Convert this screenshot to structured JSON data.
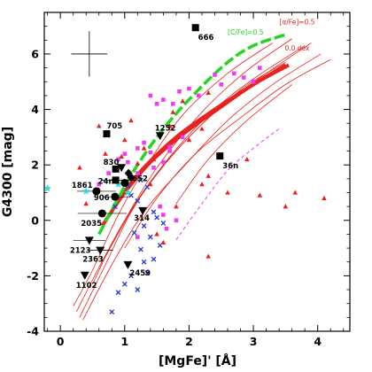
{
  "chart_data": {
    "type": "scatter",
    "xlabel": "[MgFe]' [Å]",
    "ylabel": "G4300 [mag]",
    "xlim": [
      -0.25,
      4.5
    ],
    "ylim": [
      -4,
      7.5
    ],
    "xticks": [
      0,
      1,
      2,
      3,
      4
    ],
    "yticks": [
      -4,
      -2,
      0,
      2,
      4,
      6
    ],
    "grid": false,
    "colors": {
      "red": "#e8231f",
      "green": "#1fd81f",
      "magenta": "#f23bf2",
      "blue": "#2a3fd0",
      "cyan": "#22dddd",
      "black": "#000000"
    },
    "model_labels": [
      {
        "text": "[C/Fe]=0.5",
        "color": "#1fd81f",
        "x": 2.88,
        "y": 6.7
      },
      {
        "text": "[α/Fe]=0.5",
        "color": "#e8231f",
        "x": 3.68,
        "y": 7.07
      },
      {
        "text": "0.0 dex",
        "color": "#e8231f",
        "x": 3.68,
        "y": 6.13
      }
    ],
    "error_bar": {
      "x": 0.45,
      "y": 6.0,
      "xerr": 0.28,
      "yerr": 0.82
    },
    "model_grid": [
      [
        [
          0.25,
          -3.3
        ],
        [
          0.6,
          -1.7
        ],
        [
          1.0,
          0.0
        ],
        [
          1.5,
          1.9
        ],
        [
          2.2,
          3.9
        ],
        [
          2.9,
          5.4
        ],
        [
          3.6,
          6.55
        ]
      ],
      [
        [
          0.3,
          -3.5
        ],
        [
          0.7,
          -1.6
        ],
        [
          1.1,
          0.3
        ],
        [
          1.6,
          2.0
        ],
        [
          2.3,
          3.8
        ],
        [
          3.0,
          5.1
        ],
        [
          3.8,
          6.3
        ]
      ],
      [
        [
          0.35,
          -3.6
        ],
        [
          0.8,
          -1.6
        ],
        [
          1.3,
          0.3
        ],
        [
          1.9,
          1.9
        ],
        [
          2.6,
          3.6
        ],
        [
          3.3,
          4.9
        ],
        [
          4.05,
          6.0
        ]
      ],
      [
        [
          0.2,
          -3.1
        ],
        [
          0.5,
          -1.8
        ],
        [
          0.9,
          0.2
        ],
        [
          1.35,
          2.0
        ],
        [
          1.9,
          3.8
        ],
        [
          2.6,
          5.3
        ],
        [
          3.3,
          6.4
        ]
      ],
      [
        [
          0.5,
          -2.3
        ],
        [
          0.9,
          -0.4
        ],
        [
          1.4,
          1.4
        ],
        [
          2.0,
          3.0
        ],
        [
          2.8,
          4.7
        ],
        [
          3.5,
          5.7
        ]
      ],
      [
        [
          0.7,
          -1.3
        ],
        [
          1.2,
          0.7
        ],
        [
          1.8,
          2.5
        ],
        [
          2.5,
          4.1
        ],
        [
          3.2,
          5.3
        ],
        [
          3.9,
          6.4
        ]
      ],
      [
        [
          1.0,
          -1.0
        ],
        [
          1.5,
          0.8
        ],
        [
          2.1,
          2.4
        ],
        [
          2.8,
          3.7
        ],
        [
          3.5,
          4.9
        ],
        [
          4.2,
          5.8
        ]
      ],
      [
        [
          1.8,
          0.6
        ],
        [
          2.3,
          2.2
        ],
        [
          2.9,
          3.6
        ],
        [
          3.6,
          4.9
        ]
      ]
    ],
    "model_thick": [
      [
        [
          0.65,
          -0.2
        ],
        [
          1.0,
          1.0
        ],
        [
          1.4,
          2.1
        ],
        [
          1.9,
          3.1
        ],
        [
          2.5,
          4.1
        ],
        [
          3.0,
          4.9
        ],
        [
          3.55,
          5.6
        ]
      ],
      [
        [
          0.95,
          0.9
        ],
        [
          1.3,
          1.9
        ],
        [
          1.8,
          3.0
        ],
        [
          2.4,
          4.0
        ],
        [
          3.0,
          4.9
        ],
        [
          3.5,
          5.6
        ]
      ]
    ],
    "model_green": [
      [
        0.6,
        -0.5
      ],
      [
        0.9,
        0.8
      ],
      [
        1.2,
        2.0
      ],
      [
        1.6,
        3.3
      ],
      [
        2.1,
        4.6
      ],
      [
        2.6,
        5.7
      ],
      [
        3.0,
        6.3
      ],
      [
        3.5,
        6.7
      ]
    ],
    "model_magenta_dash": [
      [
        1.8,
        -0.7
      ],
      [
        2.2,
        0.6
      ],
      [
        2.6,
        1.8
      ],
      [
        3.0,
        2.6
      ],
      [
        3.4,
        3.3
      ]
    ],
    "labeled_points": [
      {
        "label": "666",
        "x": 2.1,
        "y": 6.95,
        "marker": "square",
        "color": "#000000"
      },
      {
        "label": "705",
        "x": 0.72,
        "y": 3.12,
        "marker": "square",
        "color": "#000000"
      },
      {
        "label": "36n",
        "x": 2.48,
        "y": 2.32,
        "marker": "square",
        "color": "#000000"
      },
      {
        "label": "830",
        "x": 0.86,
        "y": 1.85,
        "marker": "square",
        "color": "#000000"
      },
      {
        "label": "24n",
        "x": 0.86,
        "y": 1.45,
        "marker": "square",
        "color": "#000000"
      },
      {
        "label": "652",
        "x": 1.06,
        "y": 1.7,
        "marker": "diamond",
        "color": "#000000"
      },
      {
        "label": "1252",
        "x": 1.55,
        "y": 3.05,
        "marker": "triangle-down",
        "color": "#000000"
      },
      {
        "label": "1861",
        "x": 0.56,
        "y": 1.05,
        "marker": "circle",
        "color": "#000000"
      },
      {
        "label": "906",
        "x": 0.85,
        "y": 0.85,
        "marker": "circle",
        "color": "#000000"
      },
      {
        "label": "2035",
        "x": 0.65,
        "y": 0.25,
        "marker": "circle",
        "color": "#000000"
      },
      {
        "label": "314",
        "x": 1.28,
        "y": 0.35,
        "marker": "triangle-down",
        "color": "#000000"
      },
      {
        "label": "2123",
        "x": 0.45,
        "y": -0.72,
        "marker": "triangle-down",
        "color": "#000000"
      },
      {
        "label": "2363",
        "x": 0.62,
        "y": -1.08,
        "marker": "triangle-down",
        "color": "#000000"
      },
      {
        "label": "2459",
        "x": 1.05,
        "y": -1.6,
        "marker": "triangle-down",
        "color": "#000000"
      },
      {
        "label": "1102",
        "x": 0.38,
        "y": -1.98,
        "marker": "triangle-down",
        "color": "#000000"
      }
    ],
    "unlabeled_black": [
      {
        "x": 1.0,
        "y": 1.35,
        "marker": "circle"
      },
      {
        "x": 1.1,
        "y": 1.55,
        "marker": "diamond"
      },
      {
        "x": 0.95,
        "y": 1.9,
        "marker": "triangle-down"
      }
    ],
    "red_triangles": [
      [
        0.6,
        3.4
      ],
      [
        0.7,
        2.4
      ],
      [
        0.3,
        1.9
      ],
      [
        0.95,
        2.3
      ],
      [
        1.2,
        2.05
      ],
      [
        1.45,
        2.2
      ],
      [
        1.3,
        2.6
      ],
      [
        1.7,
        3.4
      ],
      [
        1.75,
        3.9
      ],
      [
        2.2,
        3.3
      ],
      [
        2.0,
        2.9
      ],
      [
        2.3,
        1.6
      ],
      [
        2.6,
        1.0
      ],
      [
        2.9,
        2.2
      ],
      [
        3.1,
        0.9
      ],
      [
        3.5,
        0.5
      ],
      [
        3.65,
        1.0
      ],
      [
        4.1,
        0.8
      ],
      [
        2.2,
        1.3
      ],
      [
        1.8,
        0.5
      ],
      [
        1.5,
        -0.5
      ],
      [
        2.3,
        -1.3
      ],
      [
        1.6,
        -0.8
      ],
      [
        0.6,
        1.1
      ],
      [
        0.4,
        0.6
      ],
      [
        1.0,
        2.9
      ],
      [
        1.1,
        3.6
      ],
      [
        1.9,
        4.3
      ],
      [
        2.3,
        4.6
      ],
      [
        1.4,
        1.3
      ]
    ],
    "magenta_squares": [
      [
        1.4,
        4.5
      ],
      [
        1.5,
        4.2
      ],
      [
        1.6,
        4.35
      ],
      [
        1.75,
        4.2
      ],
      [
        1.85,
        4.65
      ],
      [
        2.0,
        4.75
      ],
      [
        2.15,
        4.5
      ],
      [
        2.4,
        5.25
      ],
      [
        2.5,
        4.9
      ],
      [
        2.7,
        5.3
      ],
      [
        2.85,
        5.15
      ],
      [
        3.0,
        5.0
      ],
      [
        3.1,
        5.5
      ],
      [
        1.3,
        2.8
      ],
      [
        1.2,
        2.6
      ],
      [
        1.0,
        2.4
      ],
      [
        1.05,
        2.1
      ],
      [
        0.9,
        2.2
      ],
      [
        1.2,
        1.7
      ],
      [
        1.45,
        1.9
      ],
      [
        1.6,
        2.1
      ],
      [
        1.7,
        2.5
      ],
      [
        1.55,
        0.5
      ],
      [
        1.6,
        0.2
      ],
      [
        1.65,
        -0.3
      ],
      [
        1.8,
        0.0
      ],
      [
        1.2,
        -0.6
      ],
      [
        1.7,
        2.65
      ],
      [
        1.9,
        3.0
      ],
      [
        1.4,
        2.45
      ],
      [
        0.75,
        1.7
      ],
      [
        0.6,
        1.3
      ]
    ],
    "blue_crosses": [
      [
        1.05,
        1.25
      ],
      [
        1.1,
        0.9
      ],
      [
        1.25,
        1.45
      ],
      [
        1.35,
        1.2
      ],
      [
        1.2,
        0.7
      ],
      [
        1.45,
        0.3
      ],
      [
        1.5,
        0.1
      ],
      [
        1.6,
        -0.1
      ],
      [
        1.3,
        -0.2
      ],
      [
        1.15,
        -0.45
      ],
      [
        1.4,
        -0.6
      ],
      [
        1.55,
        -0.9
      ],
      [
        1.25,
        -1.05
      ],
      [
        1.45,
        -1.4
      ],
      [
        1.3,
        -1.5
      ],
      [
        1.1,
        -2.0
      ],
      [
        1.0,
        -2.3
      ],
      [
        1.2,
        -2.5
      ],
      [
        0.9,
        -2.6
      ],
      [
        0.8,
        -3.3
      ],
      [
        1.35,
        -1.9
      ],
      [
        0.85,
        0.5
      ]
    ],
    "cyan_stars": [
      [
        0.4,
        1.05
      ],
      [
        -0.2,
        1.15
      ],
      [
        0.9,
        1.3
      ],
      [
        1.05,
        1.0
      ]
    ],
    "horizontal_error_bars": [
      {
        "x": 0.56,
        "y": 1.05,
        "xerr": 0.3
      },
      {
        "x": 0.65,
        "y": 0.25,
        "xerr": 0.38
      },
      {
        "x": 0.45,
        "y": -0.72,
        "xerr": 0.25
      },
      {
        "x": 0.62,
        "y": -1.08,
        "xerr": 0.2
      },
      {
        "x": 0.86,
        "y": 1.45,
        "xerr": 0.22
      },
      {
        "x": 0.85,
        "y": 0.85,
        "xerr": 0.2
      }
    ]
  }
}
